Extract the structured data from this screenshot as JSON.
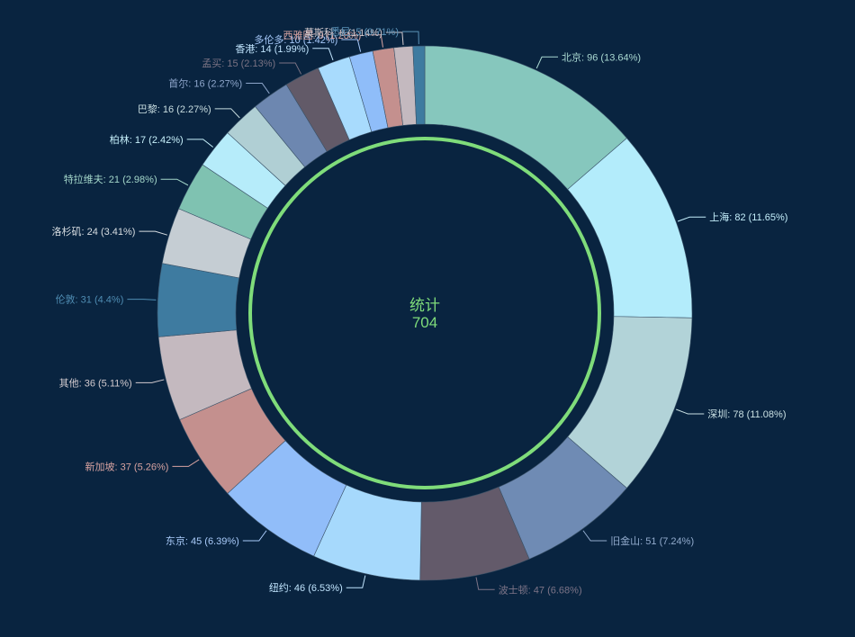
{
  "chart_data": {
    "type": "pie",
    "variant": "donut",
    "center": {
      "title": "统计",
      "total": "704"
    },
    "slices": [
      {
        "name": "北京",
        "value": 96,
        "percent": "13.64%",
        "color": "#86c7bd",
        "label_color": "#a9d8d1"
      },
      {
        "name": "上海",
        "value": 82,
        "percent": "11.65%",
        "color": "#b3ecfb",
        "label_color": "#c4effb"
      },
      {
        "name": "深圳",
        "value": 78,
        "percent": "11.08%",
        "color": "#b2d3d8",
        "label_color": "#c9e0e3"
      },
      {
        "name": "旧金山",
        "value": 51,
        "percent": "7.24%",
        "color": "#6f8bb4",
        "label_color": "#92abcd"
      },
      {
        "name": "波士顿",
        "value": 47,
        "percent": "6.68%",
        "color": "#635a6a",
        "label_color": "#7d7487"
      },
      {
        "name": "纽约",
        "value": 46,
        "percent": "6.53%",
        "color": "#a6d9fc",
        "label_color": "#c0e4fd"
      },
      {
        "name": "东京",
        "value": 45,
        "percent": "6.39%",
        "color": "#91bdf9",
        "label_color": "#a9cbfa"
      },
      {
        "name": "新加坡",
        "value": 37,
        "percent": "5.26%",
        "color": "#c4908e",
        "label_color": "#d8a3a1"
      },
      {
        "name": "其他",
        "value": 36,
        "percent": "5.11%",
        "color": "#c4b9bf",
        "label_color": "#d3cbcf"
      },
      {
        "name": "伦敦",
        "value": 31,
        "percent": "4.4%",
        "color": "#3e7ba0",
        "label_color": "#4f8db3"
      },
      {
        "name": "洛杉矶",
        "value": 24,
        "percent": "3.41%",
        "color": "#c5cdd3",
        "label_color": "#d7dde1"
      },
      {
        "name": "特拉维夫",
        "value": 21,
        "percent": "2.98%",
        "color": "#7fc2b1",
        "label_color": "#a4d7ca"
      },
      {
        "name": "柏林",
        "value": 17,
        "percent": "2.42%",
        "color": "#b6ecfa",
        "label_color": "#c7f1fb"
      },
      {
        "name": "巴黎",
        "value": 16,
        "percent": "2.27%",
        "color": "#b0cfd4",
        "label_color": "#c8dde0"
      },
      {
        "name": "首尔",
        "value": 16,
        "percent": "2.27%",
        "color": "#6d87b0",
        "label_color": "#8ea6cb"
      },
      {
        "name": "孟买",
        "value": 15,
        "percent": "2.13%",
        "color": "#625a68",
        "label_color": "#7a7283"
      },
      {
        "name": "香港",
        "value": 14,
        "percent": "1.99%",
        "color": "#a8dbfd",
        "label_color": "#c0e4fd"
      },
      {
        "name": "多伦多",
        "value": 10,
        "percent": "1.42%",
        "color": "#8fbdf9",
        "label_color": "#a6c9fa"
      },
      {
        "name": "西雅图",
        "value": 9,
        "percent": "1.28%",
        "color": "#c4908e",
        "label_color": "#d8a3a1"
      },
      {
        "name": "莫斯科",
        "value": 8,
        "percent": "1.14%",
        "color": "#c4b9bf",
        "label_color": "#d3cbcf"
      },
      {
        "name": "悉尼",
        "value": 5,
        "percent": "0.71%",
        "color": "#3e7ba0",
        "label_color": "#5b93b8"
      }
    ]
  },
  "colors": {
    "background": "#092440",
    "inner_ring": "#7fdc7a",
    "center_text": "#7fdc7a",
    "slice_border": "#3a5268"
  }
}
